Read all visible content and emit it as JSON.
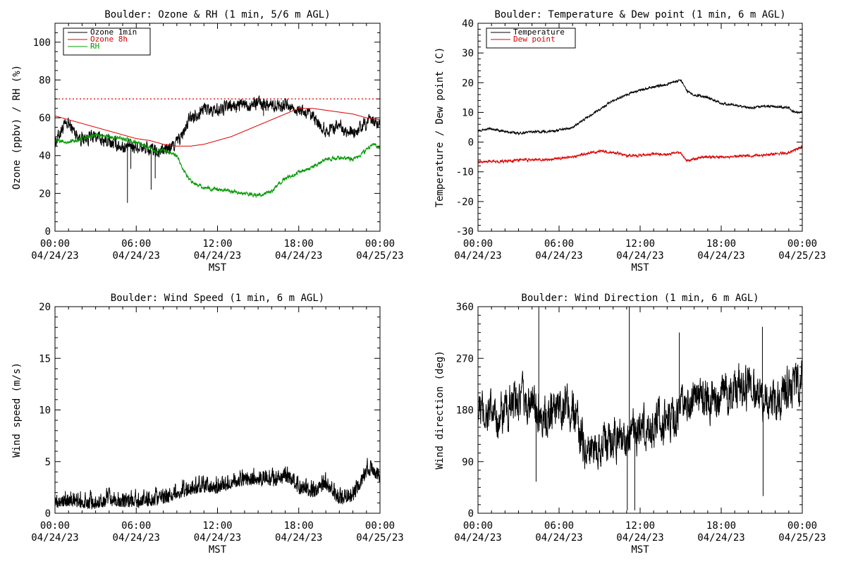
{
  "colors": {
    "black": "#000000",
    "red": "#dd0000",
    "green": "#009900"
  },
  "chart_data": [
    {
      "id": "ozone",
      "type": "line",
      "title": "Boulder: Ozone & RH (1 min, 5/6 m AGL)",
      "ylabel": "Ozone (ppbv) / RH (%)",
      "xlabel": "MST",
      "ylim": [
        0,
        110
      ],
      "yticks": [
        0,
        20,
        40,
        60,
        80,
        100
      ],
      "yminor": 5,
      "xlim": [
        0,
        24
      ],
      "xticks": [
        {
          "hour": 0,
          "time": "00:00",
          "date": "04/24/23"
        },
        {
          "hour": 6,
          "time": "06:00",
          "date": "04/24/23"
        },
        {
          "hour": 12,
          "time": "12:00",
          "date": "04/24/23"
        },
        {
          "hour": 18,
          "time": "18:00",
          "date": "04/24/23"
        },
        {
          "hour": 24,
          "time": "00:00",
          "date": "04/25/23"
        }
      ],
      "hline": {
        "y": 70,
        "color": "#dd0000",
        "style": "dotted"
      },
      "legend_position": "top-left",
      "series": [
        {
          "name": "Ozone 1min",
          "color": "#000000",
          "noise": 3,
          "x": [
            0,
            0.5,
            1,
            1.5,
            2,
            3,
            4,
            5,
            5.3,
            5.5,
            6,
            6.5,
            7,
            7.5,
            8,
            8.5,
            9,
            9.5,
            10,
            11,
            12,
            13,
            14,
            15,
            16,
            17,
            18,
            19,
            20,
            20.5,
            21,
            21.5,
            22,
            22.5,
            23,
            24
          ],
          "y": [
            47,
            54,
            57,
            52,
            49,
            50,
            47,
            45,
            44,
            45,
            45,
            44,
            43,
            42,
            43,
            44,
            47,
            52,
            60,
            65,
            64,
            66,
            67,
            68,
            67,
            67,
            64,
            60,
            53,
            55,
            56,
            54,
            51,
            54,
            58,
            57
          ]
        },
        {
          "name": "Ozone 8h",
          "color": "#dd0000",
          "noise": 0,
          "x": [
            0,
            1,
            2,
            3,
            4,
            5,
            6,
            7,
            8,
            9,
            10,
            11,
            12,
            13,
            14,
            15,
            16,
            17,
            18,
            19,
            20,
            21,
            22,
            23,
            24
          ],
          "y": [
            61,
            59,
            57,
            55,
            53,
            51,
            49,
            48,
            46,
            45,
            45,
            46,
            48,
            50,
            53,
            56,
            59,
            62,
            65,
            65,
            64,
            63,
            62,
            60,
            59
          ]
        },
        {
          "name": "RH",
          "color": "#009900",
          "noise": 0.8,
          "x": [
            0,
            1,
            2,
            3,
            4,
            5,
            6,
            7,
            7.5,
            8,
            9,
            9.5,
            10,
            11,
            12,
            13,
            14,
            15,
            16,
            16.5,
            17,
            18,
            19,
            20,
            21,
            22,
            22.5,
            23,
            23.5,
            24
          ],
          "y": [
            48,
            47,
            49,
            51,
            50,
            49,
            47,
            44,
            42,
            43,
            40,
            32,
            27,
            23,
            22,
            21,
            20,
            19,
            21,
            25,
            28,
            31,
            34,
            38,
            39,
            38,
            40,
            43,
            46,
            44
          ]
        }
      ],
      "spikes": [
        {
          "x": 5.35,
          "y": 15
        },
        {
          "x": 5.6,
          "y": 33
        },
        {
          "x": 7.1,
          "y": 22
        },
        {
          "x": 7.4,
          "y": 28
        },
        {
          "x": 15.4,
          "y": 61
        }
      ]
    },
    {
      "id": "temp",
      "type": "line",
      "title": "Boulder: Temperature & Dew point (1 min, 6 m AGL)",
      "ylabel": "Temperature / Dew point (C)",
      "xlabel": "MST",
      "ylim": [
        -30,
        40
      ],
      "yticks": [
        -30,
        -20,
        -10,
        0,
        10,
        20,
        30,
        40
      ],
      "yminor": 2,
      "xlim": [
        0,
        24
      ],
      "xticks": [
        {
          "hour": 0,
          "time": "00:00",
          "date": "04/24/23"
        },
        {
          "hour": 6,
          "time": "06:00",
          "date": "04/24/23"
        },
        {
          "hour": 12,
          "time": "12:00",
          "date": "04/24/23"
        },
        {
          "hour": 18,
          "time": "18:00",
          "date": "04/24/23"
        },
        {
          "hour": 24,
          "time": "00:00",
          "date": "04/25/23"
        }
      ],
      "legend_position": "top-left",
      "series": [
        {
          "name": "Temperature",
          "color": "#000000",
          "noise": 0.3,
          "x": [
            0,
            1,
            2,
            3,
            4,
            5,
            6,
            7,
            8,
            9,
            10,
            11,
            12,
            13,
            14,
            15,
            15.5,
            16,
            17,
            18,
            19,
            20,
            21,
            22,
            23,
            23.5,
            24
          ],
          "y": [
            4,
            4.5,
            3.5,
            3,
            3.5,
            3.5,
            4,
            5,
            8,
            11,
            14,
            16,
            17.5,
            18.5,
            19.5,
            21,
            17,
            16,
            15,
            13,
            12.5,
            11.5,
            12,
            12,
            11.5,
            10,
            10
          ]
        },
        {
          "name": "Dew point",
          "color": "#dd0000",
          "noise": 0.35,
          "x": [
            0,
            1,
            2,
            3,
            4,
            5,
            6,
            7,
            8,
            9,
            10,
            11,
            12,
            13,
            14,
            15,
            15.5,
            16,
            17,
            18,
            19,
            20,
            21,
            22,
            23,
            24
          ],
          "y": [
            -6.5,
            -6.5,
            -6.5,
            -6,
            -6,
            -6,
            -5.5,
            -5,
            -4,
            -3,
            -3.5,
            -4.5,
            -4.5,
            -4,
            -4,
            -3.5,
            -6.5,
            -5.5,
            -5,
            -5,
            -5,
            -4.5,
            -4.5,
            -4,
            -3.5,
            -1.5
          ]
        }
      ]
    },
    {
      "id": "wspd",
      "type": "line",
      "title": "Boulder: Wind Speed (1 min, 6 m AGL)",
      "ylabel": "Wind speed (m/s)",
      "xlabel": "MST",
      "ylim": [
        0,
        20
      ],
      "yticks": [
        0,
        5,
        10,
        15,
        20
      ],
      "yminor": 1,
      "xlim": [
        0,
        24
      ],
      "xticks": [
        {
          "hour": 0,
          "time": "00:00",
          "date": "04/24/23"
        },
        {
          "hour": 6,
          "time": "06:00",
          "date": "04/24/23"
        },
        {
          "hour": 12,
          "time": "12:00",
          "date": "04/24/23"
        },
        {
          "hour": 18,
          "time": "18:00",
          "date": "04/24/23"
        },
        {
          "hour": 24,
          "time": "00:00",
          "date": "04/25/23"
        }
      ],
      "series": [
        {
          "name": "",
          "color": "#000000",
          "noise": 0.9,
          "positive": true,
          "x": [
            0,
            1,
            2,
            3,
            4,
            5,
            6,
            7,
            8,
            9,
            10,
            11,
            12,
            13,
            14,
            15,
            16,
            17,
            18,
            19,
            20,
            21,
            22,
            23,
            23.5,
            24
          ],
          "y": [
            0.8,
            1,
            0.8,
            0.7,
            1,
            0.9,
            0.8,
            0.9,
            1.2,
            1.6,
            2.1,
            2.3,
            2.2,
            2.6,
            3,
            3,
            2.8,
            3.3,
            2.2,
            1.8,
            2.6,
            1.1,
            1.4,
            3.8,
            4,
            3
          ]
        }
      ]
    },
    {
      "id": "wdir",
      "type": "line",
      "title": "Boulder: Wind Direction (1 min, 6 m AGL)",
      "ylabel": "Wind direction (deg)",
      "xlabel": "MST",
      "ylim": [
        0,
        360
      ],
      "yticks": [
        0,
        90,
        180,
        270,
        360
      ],
      "yminor": 15,
      "xlim": [
        0,
        24
      ],
      "xticks": [
        {
          "hour": 0,
          "time": "00:00",
          "date": "04/24/23"
        },
        {
          "hour": 6,
          "time": "06:00",
          "date": "04/24/23"
        },
        {
          "hour": 12,
          "time": "12:00",
          "date": "04/24/23"
        },
        {
          "hour": 18,
          "time": "18:00",
          "date": "04/24/23"
        },
        {
          "hour": 24,
          "time": "00:00",
          "date": "04/25/23"
        }
      ],
      "series": [
        {
          "name": "",
          "color": "#000000",
          "noise": 30,
          "x": [
            0,
            1,
            2,
            3,
            4,
            5,
            6,
            6.5,
            7,
            7.5,
            8,
            9,
            10,
            11,
            12,
            13,
            14,
            15,
            16,
            17,
            18,
            19,
            20,
            21,
            22,
            23,
            24
          ],
          "y": [
            180,
            170,
            170,
            200,
            190,
            170,
            190,
            190,
            180,
            140,
            110,
            120,
            130,
            135,
            145,
            150,
            160,
            175,
            195,
            200,
            205,
            220,
            220,
            210,
            190,
            220,
            225
          ]
        }
      ],
      "spikes": [
        {
          "x": 4.5,
          "y": 360
        },
        {
          "x": 4.3,
          "y": 55
        },
        {
          "x": 11.2,
          "y": 360
        },
        {
          "x": 11.05,
          "y": 5
        },
        {
          "x": 11.6,
          "y": 5
        },
        {
          "x": 14.9,
          "y": 315
        },
        {
          "x": 21.05,
          "y": 325
        },
        {
          "x": 21.1,
          "y": 30
        }
      ]
    }
  ]
}
